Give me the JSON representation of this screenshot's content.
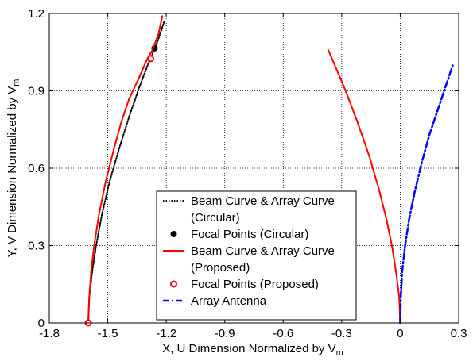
{
  "chart_data": {
    "type": "line",
    "xlabel": "X, U Dimension Normalized by V",
    "xlabel_sub": "m",
    "ylabel": "Y, V Dimension Normalized by V",
    "ylabel_sub": "m",
    "xlim": [
      -1.8,
      0.3
    ],
    "ylim": [
      0,
      1.2
    ],
    "xticks": [
      -1.8,
      -1.5,
      -1.2,
      -0.9,
      -0.6,
      -0.3,
      0,
      0.3
    ],
    "xtick_labels": [
      "-1.8",
      "-1.5",
      "-1.2",
      "-0.9",
      "-0.6",
      "-0.3",
      "0",
      "0.3"
    ],
    "yticks": [
      0,
      0.3,
      0.6,
      0.9,
      1.2
    ],
    "ytick_labels": [
      "0",
      "0.3",
      "0.6",
      "0.9",
      "1.2"
    ],
    "grid": true,
    "legend_position": "bottom-center",
    "series": [
      {
        "name": "Beam Curve & Array Curve (Circular)",
        "legend_lines": [
          "Beam Curve & Array Curve",
          "(Circular)"
        ],
        "style": "dotted",
        "color": "#000000",
        "marker": "none",
        "segments": [
          [
            [
              -1.6,
              0.0
            ],
            [
              -1.595,
              0.1
            ],
            [
              -1.58,
              0.2
            ],
            [
              -1.56,
              0.3
            ],
            [
              -1.53,
              0.42
            ],
            [
              -1.49,
              0.55
            ],
            [
              -1.44,
              0.68
            ],
            [
              -1.39,
              0.8
            ],
            [
              -1.34,
              0.91
            ],
            [
              -1.29,
              1.01
            ],
            [
              -1.25,
              1.08
            ],
            [
              -1.21,
              1.17
            ]
          ]
        ]
      },
      {
        "name": "Focal Points (Circular)",
        "legend_lines": [
          "Focal Points (Circular)"
        ],
        "style": "none",
        "color": "#000000",
        "marker": "filled-circle",
        "points": [
          [
            -1.26,
            1.065
          ]
        ]
      },
      {
        "name": "Beam Curve & Array Curve (Proposed)",
        "legend_lines": [
          "Beam Curve & Array Curve",
          "(Proposed)"
        ],
        "style": "solid",
        "color": "#ff0000",
        "marker": "none",
        "segments": [
          [
            [
              -1.6,
              0.0
            ],
            [
              -1.595,
              0.1
            ],
            [
              -1.585,
              0.2
            ],
            [
              -1.57,
              0.3
            ],
            [
              -1.545,
              0.42
            ],
            [
              -1.51,
              0.55
            ],
            [
              -1.47,
              0.67
            ],
            [
              -1.43,
              0.78
            ],
            [
              -1.39,
              0.87
            ],
            [
              -1.34,
              0.95
            ],
            [
              -1.3,
              1.02
            ],
            [
              -1.27,
              1.06
            ],
            [
              -1.24,
              1.12
            ],
            [
              -1.22,
              1.19
            ]
          ],
          [
            [
              -0.37,
              1.06
            ],
            [
              -0.33,
              0.99
            ],
            [
              -0.28,
              0.9
            ],
            [
              -0.22,
              0.78
            ],
            [
              -0.16,
              0.65
            ],
            [
              -0.11,
              0.52
            ],
            [
              -0.07,
              0.4
            ],
            [
              -0.04,
              0.29
            ],
            [
              -0.02,
              0.19
            ],
            [
              -0.005,
              0.1
            ],
            [
              0.0,
              0.0
            ]
          ]
        ]
      },
      {
        "name": "Focal Points (Proposed)",
        "legend_lines": [
          "Focal Points (Proposed)"
        ],
        "style": "none",
        "color": "#ff0000",
        "marker": "open-circle",
        "points": [
          [
            -1.6,
            0.0
          ],
          [
            -1.28,
            1.025
          ]
        ]
      },
      {
        "name": "Array Antenna",
        "legend_lines": [
          "Array Antenna"
        ],
        "style": "dashdot",
        "color": "#0000ff",
        "marker": "none",
        "segments": [
          [
            [
              0.0,
              0.0
            ],
            [
              0.003,
              0.1
            ],
            [
              0.01,
              0.2
            ],
            [
              0.025,
              0.3
            ],
            [
              0.045,
              0.4
            ],
            [
              0.075,
              0.51
            ],
            [
              0.11,
              0.62
            ],
            [
              0.15,
              0.73
            ],
            [
              0.19,
              0.82
            ],
            [
              0.23,
              0.91
            ],
            [
              0.27,
              1.0
            ]
          ]
        ]
      }
    ]
  }
}
